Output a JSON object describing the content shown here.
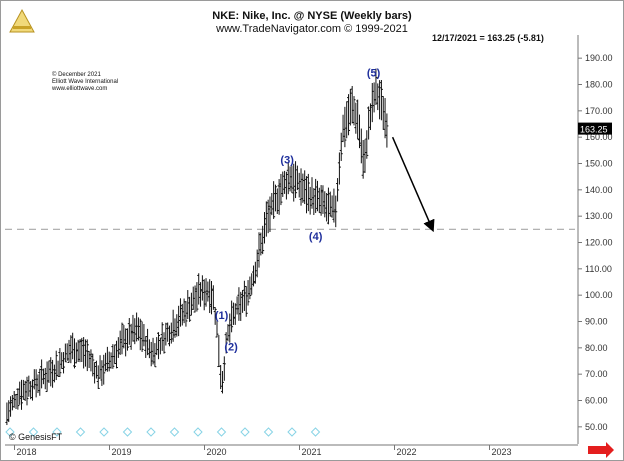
{
  "header": {
    "line1": "NKE: Nike, Inc. @ NYSE  (Weekly bars)",
    "line2": "www.TradeNavigator.com © 1999-2021",
    "quote": "12/17/2021 = 163.25 (-5.81)"
  },
  "credit": {
    "line1": "© December 2021",
    "line2": "Elliott Wave International",
    "line3": "www.elliottwave.com"
  },
  "footer": {
    "genesis": "© GenesisFT"
  },
  "colors": {
    "bars": "#111111",
    "wave_labels": "#1f2f9c",
    "target_line": "#a8a8a8",
    "axis_labels": "#333333",
    "last_price_bg": "#000000",
    "nav_arrow": "#e41e1e",
    "event_markers": "#87d3e6"
  },
  "chart_data": {
    "type": "ohlc",
    "ticker": "NKE",
    "ylim": [
      45,
      195
    ],
    "yticks": [
      "50.00",
      "60.00",
      "70.00",
      "80.00",
      "90.00",
      "100.00",
      "110.00",
      "120.00",
      "130.00",
      "140.00",
      "150.00",
      "160.00",
      "170.00",
      "180.00",
      "190.00"
    ],
    "ytick_values": [
      50,
      60,
      70,
      80,
      90,
      100,
      110,
      120,
      130,
      140,
      150,
      160,
      170,
      180,
      190
    ],
    "xticks": [
      "2018",
      "2019",
      "2020",
      "2021",
      "2022",
      "2023"
    ],
    "xtick_values": [
      2018.0,
      2019.0,
      2020.0,
      2021.0,
      2022.0,
      2023.0
    ],
    "xlim": [
      2017.9,
      2023.9
    ],
    "last_price": "163.25",
    "last_value": 163.25,
    "target_level": 125,
    "price_path": [
      [
        2017.92,
        55
      ],
      [
        2018.05,
        63
      ],
      [
        2018.2,
        66
      ],
      [
        2018.45,
        73
      ],
      [
        2018.6,
        80
      ],
      [
        2018.75,
        78
      ],
      [
        2018.88,
        70
      ],
      [
        2019.0,
        75
      ],
      [
        2019.15,
        83
      ],
      [
        2019.3,
        87
      ],
      [
        2019.45,
        78
      ],
      [
        2019.6,
        85
      ],
      [
        2019.75,
        92
      ],
      [
        2019.95,
        101
      ],
      [
        2020.05,
        102
      ],
      [
        2020.1,
        98
      ],
      [
        2020.15,
        80
      ],
      [
        2020.18,
        65
      ],
      [
        2020.24,
        84
      ],
      [
        2020.3,
        92
      ],
      [
        2020.45,
        100
      ],
      [
        2020.55,
        112
      ],
      [
        2020.65,
        128
      ],
      [
        2020.8,
        140
      ],
      [
        2020.9,
        145
      ],
      [
        2021.0,
        142
      ],
      [
        2021.1,
        138
      ],
      [
        2021.2,
        136
      ],
      [
        2021.3,
        133
      ],
      [
        2021.38,
        132
      ],
      [
        2021.45,
        162
      ],
      [
        2021.55,
        172
      ],
      [
        2021.62,
        166
      ],
      [
        2021.68,
        148
      ],
      [
        2021.72,
        163
      ],
      [
        2021.8,
        178
      ],
      [
        2021.87,
        172
      ],
      [
        2021.93,
        163
      ]
    ],
    "forecast_arrow": {
      "from": [
        2021.98,
        160
      ],
      "to": [
        2022.4,
        125
      ]
    },
    "wave_labels": [
      {
        "text": "(1)",
        "x": 2020.18,
        "y": 91
      },
      {
        "text": "(2)",
        "x": 2020.28,
        "y": 79
      },
      {
        "text": "(3)",
        "x": 2020.87,
        "y": 150
      },
      {
        "text": "(4)",
        "x": 2021.17,
        "y": 121
      },
      {
        "text": "(5)",
        "x": 2021.78,
        "y": 183
      }
    ],
    "event_marker_count": 14
  }
}
